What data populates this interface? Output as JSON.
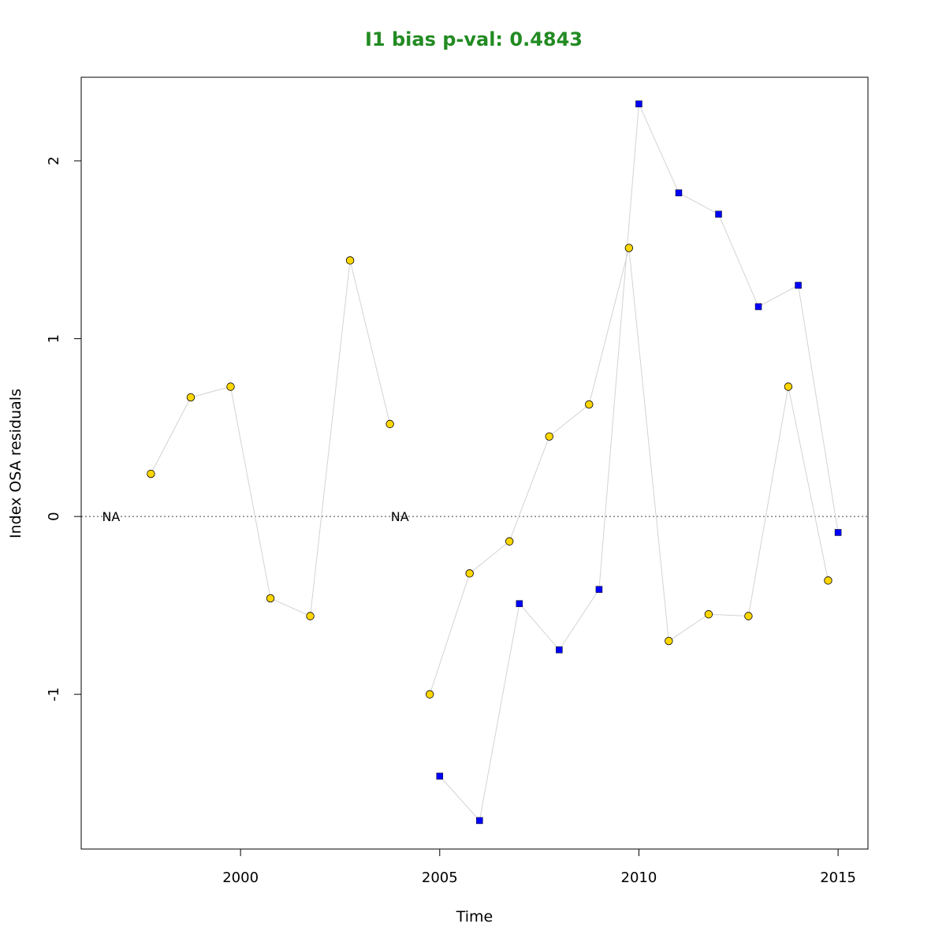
{
  "chart_data": {
    "type": "scatter",
    "title": "I1 bias p-val: 0.4843",
    "title_color": "#228B22",
    "xlabel": "Time",
    "ylabel": "Index OSA residuals",
    "xlim": [
      1996,
      2015.75
    ],
    "ylim": [
      -1.87,
      2.47
    ],
    "x_ticks": [
      2000,
      2005,
      2010,
      2015
    ],
    "x_tick_labels": [
      "2000",
      "2005",
      "2010",
      "2015"
    ],
    "y_ticks": [
      -1,
      0,
      1,
      2
    ],
    "y_tick_labels": [
      "-1",
      "0",
      "1",
      "2"
    ],
    "reference_line": {
      "y": 0,
      "style": "dotted"
    },
    "grid": false,
    "legend": "none",
    "series": [
      {
        "marker": "circle",
        "color": "#FFD700",
        "line_color": "#D3D3D3",
        "points": [
          {
            "x": 1996.75,
            "y": null,
            "label": "NA"
          },
          {
            "x": 1997.75,
            "y": 0.24
          },
          {
            "x": 1998.75,
            "y": 0.67
          },
          {
            "x": 1999.75,
            "y": 0.73
          },
          {
            "x": 2000.75,
            "y": -0.46
          },
          {
            "x": 2001.75,
            "y": -0.56
          },
          {
            "x": 2002.75,
            "y": 1.44
          },
          {
            "x": 2003.75,
            "y": 0.52
          },
          {
            "x": 2004.0,
            "y": null,
            "label": "NA"
          },
          {
            "x": 2004.75,
            "y": -1.0
          },
          {
            "x": 2005.75,
            "y": -0.32
          },
          {
            "x": 2006.75,
            "y": -0.14
          },
          {
            "x": 2007.75,
            "y": 0.45
          },
          {
            "x": 2008.75,
            "y": 0.63
          },
          {
            "x": 2009.75,
            "y": 1.51
          },
          {
            "x": 2010.75,
            "y": -0.7
          },
          {
            "x": 2011.75,
            "y": -0.55
          },
          {
            "x": 2012.75,
            "y": -0.56
          },
          {
            "x": 2013.75,
            "y": 0.73
          },
          {
            "x": 2014.75,
            "y": -0.36
          }
        ]
      },
      {
        "marker": "square",
        "color": "#0000FF",
        "line_color": "#D3D3D3",
        "points": [
          {
            "x": 2005.0,
            "y": -1.46
          },
          {
            "x": 2006.0,
            "y": -1.71
          },
          {
            "x": 2007.0,
            "y": -0.49
          },
          {
            "x": 2008.0,
            "y": -0.75
          },
          {
            "x": 2009.0,
            "y": -0.41
          },
          {
            "x": 2010.0,
            "y": 2.32
          },
          {
            "x": 2011.0,
            "y": 1.82
          },
          {
            "x": 2012.0,
            "y": 1.7
          },
          {
            "x": 2013.0,
            "y": 1.18
          },
          {
            "x": 2014.0,
            "y": 1.3
          },
          {
            "x": 2015.0,
            "y": -0.09
          }
        ]
      }
    ]
  }
}
